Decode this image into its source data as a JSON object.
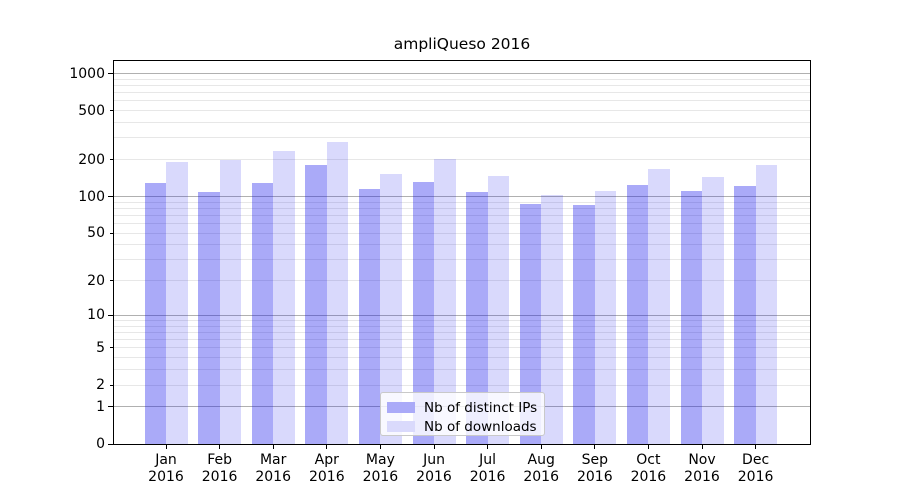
{
  "chart_data": {
    "type": "bar",
    "title": "ampliQueso 2016",
    "categories": [
      "Jan",
      "Feb",
      "Mar",
      "Apr",
      "May",
      "Jun",
      "Jul",
      "Aug",
      "Sep",
      "Oct",
      "Nov",
      "Dec"
    ],
    "x_tick_second_line": "2016",
    "series": [
      {
        "name": "Nb of distinct IPs",
        "key": "distinct-ips",
        "bar_fill": "#1414EB5C",
        "legend_fill": "#AAAAF8",
        "values": [
          128,
          109,
          130,
          181,
          116,
          132,
          109,
          87,
          86,
          123,
          111,
          121
        ]
      },
      {
        "name": "Nb of downloads",
        "key": "downloads",
        "bar_fill": "#1414EB29",
        "legend_fill": "#DADAFC",
        "values": [
          190,
          199,
          236,
          276,
          153,
          201,
          147,
          103,
          110,
          167,
          144,
          182
        ]
      }
    ],
    "y_axis": {
      "scale": "log1p",
      "tick_values": [
        0,
        1,
        2,
        5,
        10,
        20,
        50,
        100,
        200,
        500,
        1000
      ],
      "major_tick_values": [
        0,
        1,
        10,
        100,
        1000
      ],
      "range": [
        0,
        1270
      ]
    },
    "grid": {
      "enabled": true,
      "major_color": "#b0b0b0",
      "minor_color": "#e7e7e7"
    },
    "legend": {
      "position": "lower center"
    },
    "colors": {
      "background": "#ffffff",
      "axis": "#000000",
      "text": "#000000"
    }
  }
}
